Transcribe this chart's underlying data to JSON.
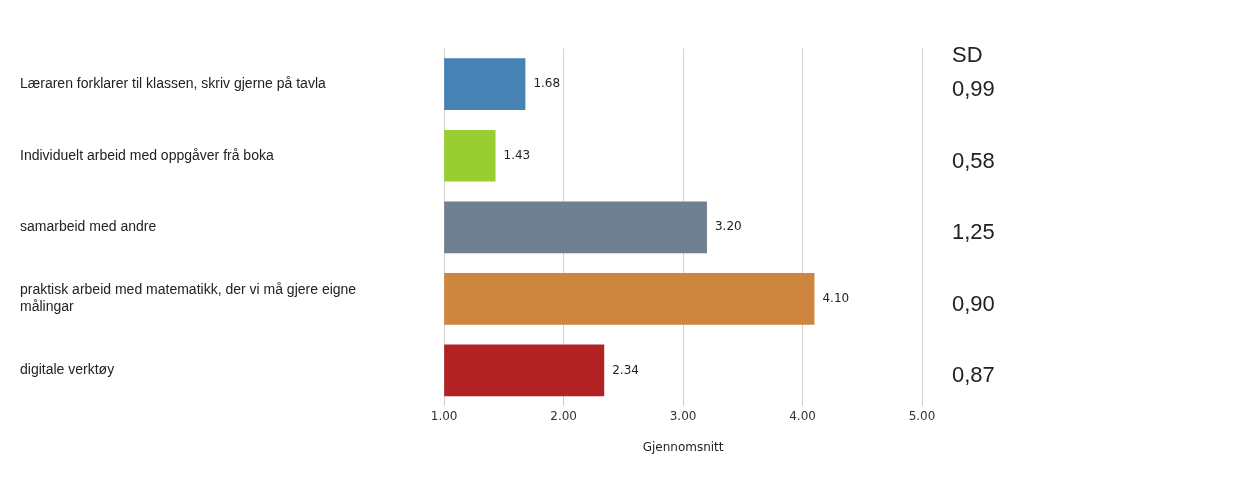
{
  "chart_data": {
    "type": "bar",
    "orientation": "horizontal",
    "xlabel": "Gjennomsnitt",
    "categories": [
      "Læraren forklarer til klassen, skriv gjerne på tavla",
      "Individuelt arbeid med oppgåver frå boka",
      "samarbeid med andre",
      "praktisk arbeid med matematikk, der vi må gjere eigne målingar",
      "digitale verktøy"
    ],
    "values": [
      1.68,
      1.43,
      3.2,
      4.1,
      2.34
    ],
    "value_labels": [
      "1.68",
      "1.43",
      "3.20",
      "4.10",
      "2.34"
    ],
    "colors": [
      "#4682b4",
      "#9acd32",
      "#708090",
      "#cd853f",
      "#b22222"
    ],
    "xlim": [
      1,
      5
    ],
    "xticks": [
      {
        "value": 1,
        "label": "1.00"
      },
      {
        "value": 2,
        "label": "2.00"
      },
      {
        "value": 3,
        "label": "3.00"
      },
      {
        "value": 4,
        "label": "4.00"
      },
      {
        "value": 5,
        "label": "5.00"
      }
    ],
    "grid": "x",
    "annotations": [
      "SD",
      "0,99",
      "0,58",
      "1,25",
      "0,90",
      "0,87"
    ]
  }
}
